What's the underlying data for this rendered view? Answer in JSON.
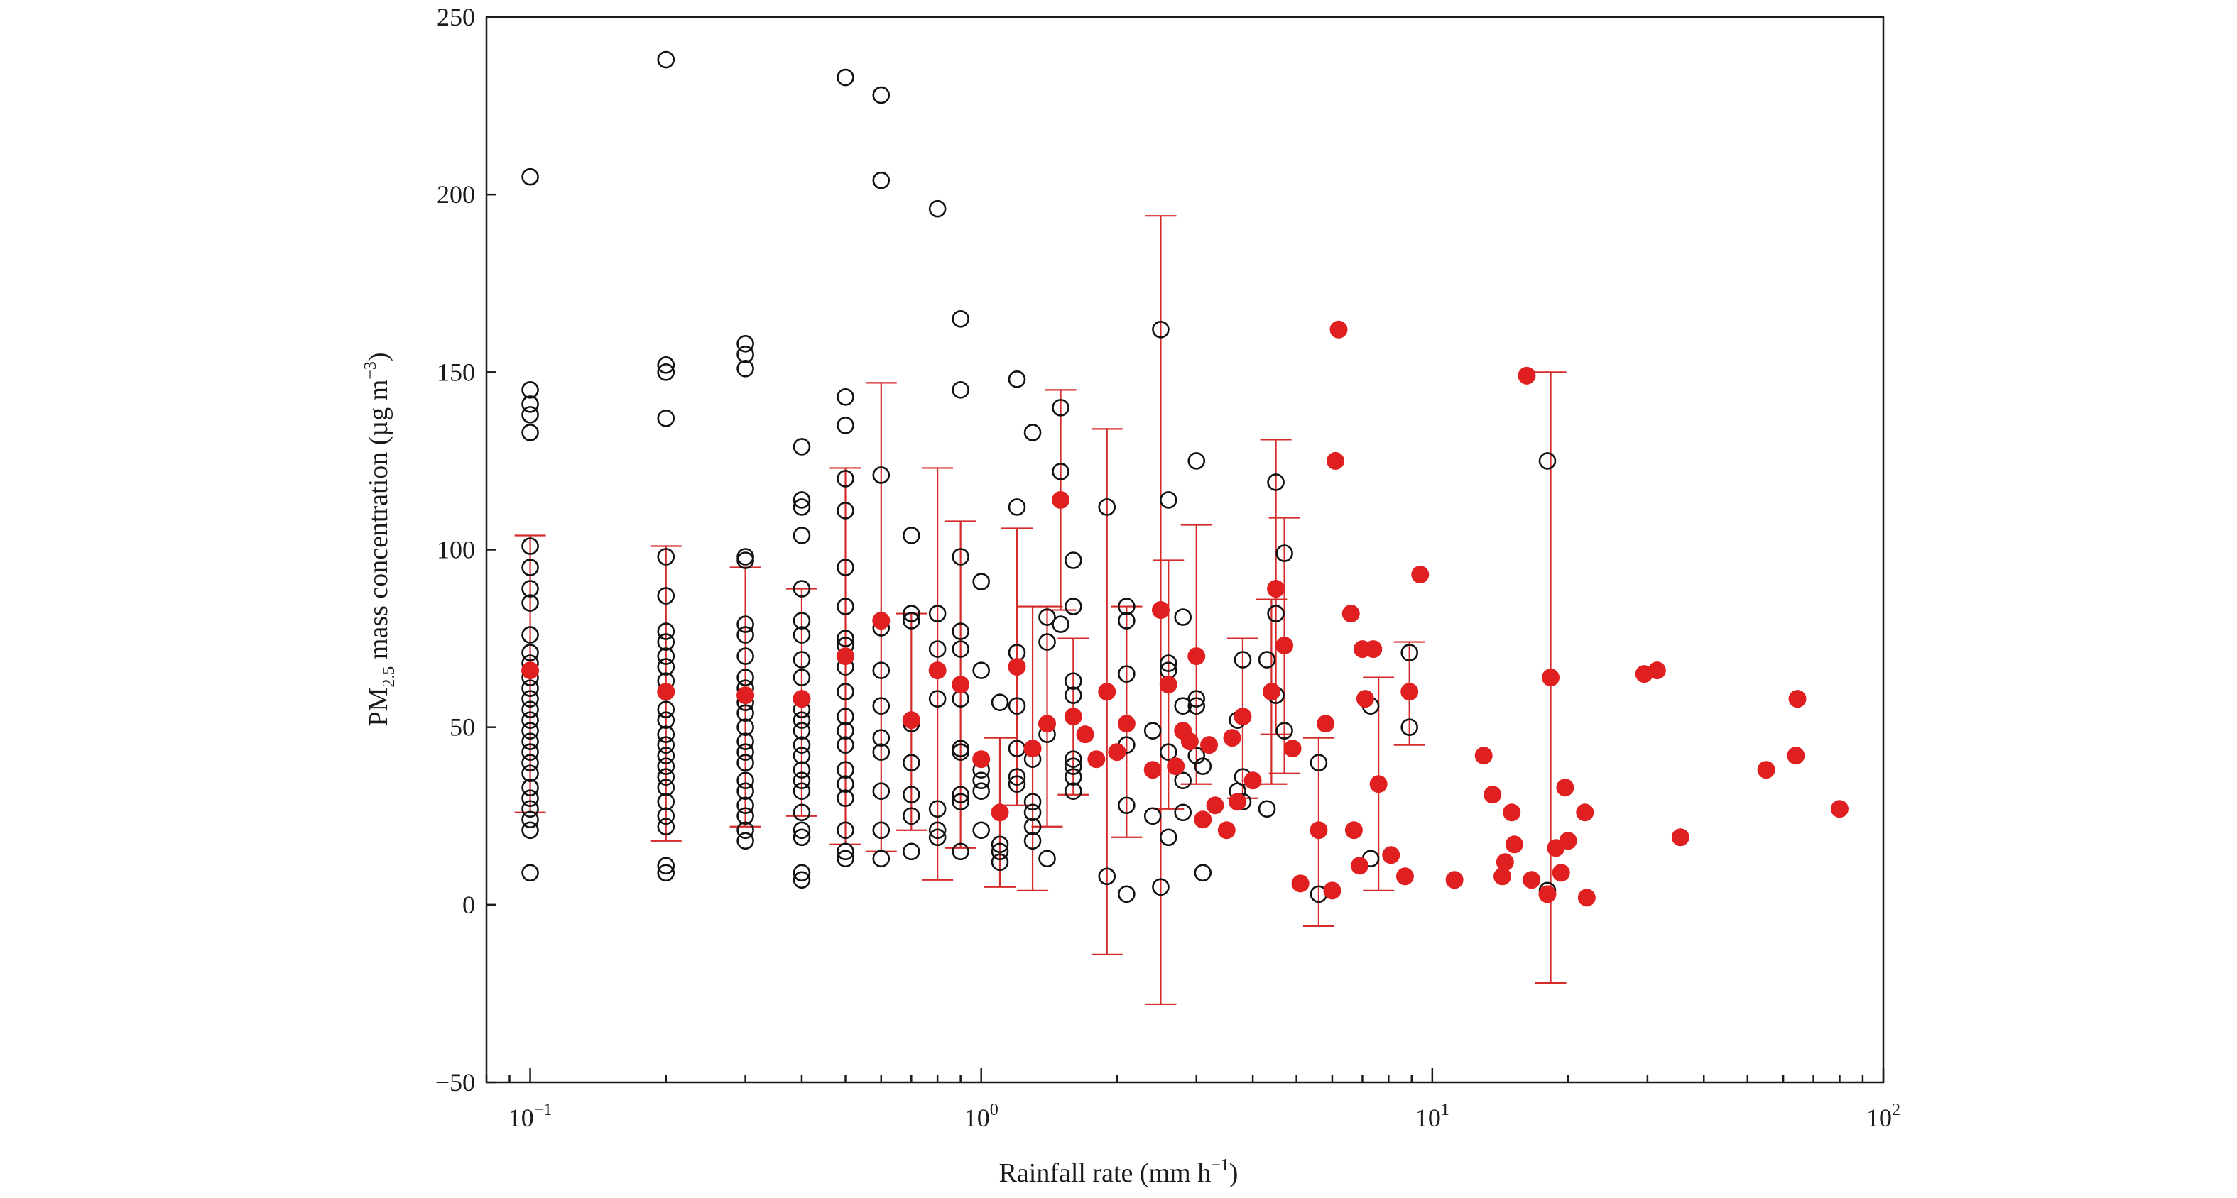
{
  "chart_data": {
    "type": "scatter",
    "title": "",
    "xlabel": {
      "main": "Rainfall rate (mm h",
      "sup": "−1",
      "close": ")"
    },
    "ylabel": {
      "pre": "PM",
      "sub": "2.5",
      "mid": " mass concentration (µg m",
      "sup": "−3",
      "close": ")"
    },
    "x_scale": "log",
    "xlim": [
      0.08,
      100
    ],
    "ylim": [
      -50,
      250
    ],
    "y_ticks": [
      -50,
      0,
      50,
      100,
      150,
      200,
      250
    ],
    "x_ticks": [
      {
        "value": 0.1,
        "base": "10",
        "exp": "−1"
      },
      {
        "value": 1,
        "base": "10",
        "exp": "0"
      },
      {
        "value": 10,
        "base": "10",
        "exp": "1"
      },
      {
        "value": 100,
        "base": "10",
        "exp": "2"
      }
    ],
    "grid": false,
    "colors": {
      "observations": "#111111",
      "means": "#e02020",
      "errorbars": "#d42a2a"
    },
    "observations": [
      [
        0.1,
        205
      ],
      [
        0.1,
        145
      ],
      [
        0.1,
        141
      ],
      [
        0.1,
        138
      ],
      [
        0.1,
        133
      ],
      [
        0.1,
        101
      ],
      [
        0.1,
        95
      ],
      [
        0.1,
        89
      ],
      [
        0.1,
        85
      ],
      [
        0.1,
        76
      ],
      [
        0.1,
        71
      ],
      [
        0.1,
        68
      ],
      [
        0.1,
        64
      ],
      [
        0.1,
        61
      ],
      [
        0.1,
        58
      ],
      [
        0.1,
        55
      ],
      [
        0.1,
        52
      ],
      [
        0.1,
        49
      ],
      [
        0.1,
        46
      ],
      [
        0.1,
        43
      ],
      [
        0.1,
        40
      ],
      [
        0.1,
        37
      ],
      [
        0.1,
        33
      ],
      [
        0.1,
        30
      ],
      [
        0.1,
        27
      ],
      [
        0.1,
        24
      ],
      [
        0.1,
        21
      ],
      [
        0.1,
        9
      ],
      [
        0.2,
        238
      ],
      [
        0.2,
        152
      ],
      [
        0.2,
        150
      ],
      [
        0.2,
        137
      ],
      [
        0.2,
        98
      ],
      [
        0.2,
        87
      ],
      [
        0.2,
        77
      ],
      [
        0.2,
        74
      ],
      [
        0.2,
        70
      ],
      [
        0.2,
        67
      ],
      [
        0.2,
        63
      ],
      [
        0.2,
        60
      ],
      [
        0.2,
        55
      ],
      [
        0.2,
        52
      ],
      [
        0.2,
        48
      ],
      [
        0.2,
        45
      ],
      [
        0.2,
        42
      ],
      [
        0.2,
        39
      ],
      [
        0.2,
        36
      ],
      [
        0.2,
        33
      ],
      [
        0.2,
        29
      ],
      [
        0.2,
        25
      ],
      [
        0.2,
        22
      ],
      [
        0.2,
        11
      ],
      [
        0.2,
        9
      ],
      [
        0.3,
        158
      ],
      [
        0.3,
        155
      ],
      [
        0.3,
        151
      ],
      [
        0.3,
        98
      ],
      [
        0.3,
        97
      ],
      [
        0.3,
        79
      ],
      [
        0.3,
        76
      ],
      [
        0.3,
        70
      ],
      [
        0.3,
        64
      ],
      [
        0.3,
        61
      ],
      [
        0.3,
        57
      ],
      [
        0.3,
        54
      ],
      [
        0.3,
        50
      ],
      [
        0.3,
        46
      ],
      [
        0.3,
        43
      ],
      [
        0.3,
        40
      ],
      [
        0.3,
        35
      ],
      [
        0.3,
        32
      ],
      [
        0.3,
        28
      ],
      [
        0.3,
        25
      ],
      [
        0.3,
        21
      ],
      [
        0.3,
        18
      ],
      [
        0.4,
        129
      ],
      [
        0.4,
        114
      ],
      [
        0.4,
        112
      ],
      [
        0.4,
        104
      ],
      [
        0.4,
        89
      ],
      [
        0.4,
        80
      ],
      [
        0.4,
        76
      ],
      [
        0.4,
        69
      ],
      [
        0.4,
        64
      ],
      [
        0.4,
        58
      ],
      [
        0.4,
        55
      ],
      [
        0.4,
        52
      ],
      [
        0.4,
        49
      ],
      [
        0.4,
        45
      ],
      [
        0.4,
        42
      ],
      [
        0.4,
        38
      ],
      [
        0.4,
        35
      ],
      [
        0.4,
        32
      ],
      [
        0.4,
        26
      ],
      [
        0.4,
        21
      ],
      [
        0.4,
        19
      ],
      [
        0.4,
        9
      ],
      [
        0.4,
        7
      ],
      [
        0.5,
        233
      ],
      [
        0.5,
        143
      ],
      [
        0.5,
        135
      ],
      [
        0.5,
        120
      ],
      [
        0.5,
        111
      ],
      [
        0.5,
        95
      ],
      [
        0.5,
        84
      ],
      [
        0.5,
        75
      ],
      [
        0.5,
        73
      ],
      [
        0.5,
        67
      ],
      [
        0.5,
        60
      ],
      [
        0.5,
        53
      ],
      [
        0.5,
        49
      ],
      [
        0.5,
        45
      ],
      [
        0.5,
        38
      ],
      [
        0.5,
        34
      ],
      [
        0.5,
        30
      ],
      [
        0.5,
        21
      ],
      [
        0.5,
        15
      ],
      [
        0.5,
        13
      ],
      [
        0.6,
        228
      ],
      [
        0.6,
        204
      ],
      [
        0.6,
        121
      ],
      [
        0.6,
        80
      ],
      [
        0.6,
        78
      ],
      [
        0.6,
        66
      ],
      [
        0.6,
        56
      ],
      [
        0.6,
        47
      ],
      [
        0.6,
        43
      ],
      [
        0.6,
        32
      ],
      [
        0.6,
        21
      ],
      [
        0.6,
        13
      ],
      [
        0.7,
        104
      ],
      [
        0.7,
        82
      ],
      [
        0.7,
        80
      ],
      [
        0.7,
        51
      ],
      [
        0.7,
        40
      ],
      [
        0.7,
        31
      ],
      [
        0.7,
        25
      ],
      [
        0.7,
        15
      ],
      [
        0.8,
        196
      ],
      [
        0.8,
        82
      ],
      [
        0.8,
        72
      ],
      [
        0.8,
        58
      ],
      [
        0.8,
        27
      ],
      [
        0.8,
        21
      ],
      [
        0.8,
        19
      ],
      [
        0.9,
        165
      ],
      [
        0.9,
        145
      ],
      [
        0.9,
        98
      ],
      [
        0.9,
        77
      ],
      [
        0.9,
        72
      ],
      [
        0.9,
        58
      ],
      [
        0.9,
        44
      ],
      [
        0.9,
        43
      ],
      [
        0.9,
        31
      ],
      [
        0.9,
        29
      ],
      [
        0.9,
        15
      ],
      [
        1.0,
        91
      ],
      [
        1.0,
        66
      ],
      [
        1.0,
        38
      ],
      [
        1.0,
        35
      ],
      [
        1.0,
        32
      ],
      [
        1.0,
        21
      ],
      [
        1.1,
        57
      ],
      [
        1.1,
        17
      ],
      [
        1.1,
        15
      ],
      [
        1.1,
        12
      ],
      [
        1.2,
        148
      ],
      [
        1.2,
        112
      ],
      [
        1.2,
        71
      ],
      [
        1.2,
        56
      ],
      [
        1.2,
        44
      ],
      [
        1.2,
        36
      ],
      [
        1.2,
        34
      ],
      [
        1.3,
        133
      ],
      [
        1.3,
        41
      ],
      [
        1.3,
        29
      ],
      [
        1.3,
        26
      ],
      [
        1.3,
        22
      ],
      [
        1.3,
        18
      ],
      [
        1.4,
        81
      ],
      [
        1.4,
        74
      ],
      [
        1.4,
        48
      ],
      [
        1.4,
        13
      ],
      [
        1.5,
        140
      ],
      [
        1.5,
        122
      ],
      [
        1.5,
        79
      ],
      [
        1.6,
        97
      ],
      [
        1.6,
        84
      ],
      [
        1.6,
        63
      ],
      [
        1.6,
        59
      ],
      [
        1.6,
        41
      ],
      [
        1.6,
        39
      ],
      [
        1.6,
        36
      ],
      [
        1.6,
        32
      ],
      [
        1.9,
        112
      ],
      [
        1.9,
        8
      ],
      [
        2.1,
        84
      ],
      [
        2.1,
        80
      ],
      [
        2.1,
        65
      ],
      [
        2.1,
        45
      ],
      [
        2.1,
        28
      ],
      [
        2.1,
        3
      ],
      [
        2.4,
        49
      ],
      [
        2.4,
        25
      ],
      [
        2.5,
        162
      ],
      [
        2.5,
        5
      ],
      [
        2.6,
        114
      ],
      [
        2.6,
        68
      ],
      [
        2.6,
        66
      ],
      [
        2.6,
        43
      ],
      [
        2.6,
        19
      ],
      [
        2.8,
        81
      ],
      [
        2.8,
        56
      ],
      [
        2.8,
        35
      ],
      [
        2.8,
        26
      ],
      [
        3.0,
        125
      ],
      [
        3.0,
        58
      ],
      [
        3.0,
        56
      ],
      [
        3.0,
        42
      ],
      [
        3.1,
        39
      ],
      [
        3.1,
        9
      ],
      [
        3.7,
        52
      ],
      [
        3.7,
        32
      ],
      [
        3.8,
        69
      ],
      [
        3.8,
        36
      ],
      [
        3.8,
        29
      ],
      [
        4.3,
        69
      ],
      [
        4.3,
        27
      ],
      [
        4.5,
        119
      ],
      [
        4.5,
        82
      ],
      [
        4.5,
        59
      ],
      [
        4.7,
        99
      ],
      [
        4.7,
        49
      ],
      [
        5.6,
        40
      ],
      [
        5.6,
        3
      ],
      [
        7.3,
        56
      ],
      [
        7.3,
        13
      ],
      [
        8.9,
        71
      ],
      [
        8.9,
        50
      ],
      [
        18.0,
        125
      ],
      [
        18.0,
        4
      ]
    ],
    "means": [
      {
        "x": 0.1,
        "y": 66,
        "lo": 26,
        "hi": 104
      },
      {
        "x": 0.2,
        "y": 60,
        "lo": 18,
        "hi": 101
      },
      {
        "x": 0.3,
        "y": 59,
        "lo": 22,
        "hi": 95
      },
      {
        "x": 0.4,
        "y": 58,
        "lo": 25,
        "hi": 89
      },
      {
        "x": 0.5,
        "y": 70,
        "lo": 17,
        "hi": 123
      },
      {
        "x": 0.6,
        "y": 80,
        "lo": 15,
        "hi": 147
      },
      {
        "x": 0.7,
        "y": 52,
        "lo": 21,
        "hi": 82
      },
      {
        "x": 0.8,
        "y": 66,
        "lo": 7,
        "hi": 123
      },
      {
        "x": 0.9,
        "y": 62,
        "lo": 16,
        "hi": 108
      },
      {
        "x": 1.0,
        "y": 41
      },
      {
        "x": 1.1,
        "y": 26,
        "lo": 5,
        "hi": 47
      },
      {
        "x": 1.2,
        "y": 67,
        "lo": 28,
        "hi": 106
      },
      {
        "x": 1.3,
        "y": 44,
        "lo": 4,
        "hi": 84
      },
      {
        "x": 1.4,
        "y": 51,
        "lo": 22,
        "hi": 84
      },
      {
        "x": 1.5,
        "y": 114,
        "lo": 83,
        "hi": 145
      },
      {
        "x": 1.6,
        "y": 53,
        "lo": 31,
        "hi": 75
      },
      {
        "x": 1.7,
        "y": 48
      },
      {
        "x": 1.8,
        "y": 41
      },
      {
        "x": 1.9,
        "y": 60,
        "lo": -14,
        "hi": 134
      },
      {
        "x": 2.0,
        "y": 43
      },
      {
        "x": 2.1,
        "y": 51,
        "lo": 19,
        "hi": 84
      },
      {
        "x": 2.4,
        "y": 38
      },
      {
        "x": 2.5,
        "y": 83,
        "lo": -28,
        "hi": 194
      },
      {
        "x": 2.6,
        "y": 62,
        "lo": 27,
        "hi": 97
      },
      {
        "x": 2.7,
        "y": 39
      },
      {
        "x": 2.8,
        "y": 49
      },
      {
        "x": 2.9,
        "y": 46
      },
      {
        "x": 3.0,
        "y": 70,
        "lo": 34,
        "hi": 107
      },
      {
        "x": 3.1,
        "y": 24
      },
      {
        "x": 3.2,
        "y": 45
      },
      {
        "x": 3.3,
        "y": 28
      },
      {
        "x": 3.5,
        "y": 21
      },
      {
        "x": 3.6,
        "y": 47
      },
      {
        "x": 3.7,
        "y": 29
      },
      {
        "x": 3.8,
        "y": 53,
        "lo": 30,
        "hi": 75
      },
      {
        "x": 4.0,
        "y": 35
      },
      {
        "x": 4.4,
        "y": 60,
        "lo": 34,
        "hi": 86
      },
      {
        "x": 4.5,
        "y": 89,
        "lo": 48,
        "hi": 131
      },
      {
        "x": 4.7,
        "y": 73,
        "lo": 37,
        "hi": 109
      },
      {
        "x": 4.9,
        "y": 44
      },
      {
        "x": 5.1,
        "y": 6
      },
      {
        "x": 5.6,
        "y": 21,
        "lo": -6,
        "hi": 47
      },
      {
        "x": 5.8,
        "y": 51
      },
      {
        "x": 6.0,
        "y": 4
      },
      {
        "x": 6.1,
        "y": 125
      },
      {
        "x": 6.2,
        "y": 162
      },
      {
        "x": 6.6,
        "y": 82
      },
      {
        "x": 6.7,
        "y": 21
      },
      {
        "x": 6.9,
        "y": 11
      },
      {
        "x": 7.0,
        "y": 72
      },
      {
        "x": 7.1,
        "y": 58
      },
      {
        "x": 7.4,
        "y": 72
      },
      {
        "x": 7.6,
        "y": 34,
        "lo": 4,
        "hi": 64
      },
      {
        "x": 8.1,
        "y": 14
      },
      {
        "x": 8.7,
        "y": 8
      },
      {
        "x": 8.9,
        "y": 60,
        "lo": 45,
        "hi": 74
      },
      {
        "x": 9.4,
        "y": 93
      },
      {
        "x": 11.2,
        "y": 7
      },
      {
        "x": 13.0,
        "y": 42
      },
      {
        "x": 13.6,
        "y": 31
      },
      {
        "x": 14.3,
        "y": 8
      },
      {
        "x": 14.5,
        "y": 12
      },
      {
        "x": 15.0,
        "y": 26
      },
      {
        "x": 15.2,
        "y": 17
      },
      {
        "x": 16.2,
        "y": 149
      },
      {
        "x": 16.6,
        "y": 7
      },
      {
        "x": 18.0,
        "y": 3
      },
      {
        "x": 18.3,
        "y": 64,
        "lo": -22,
        "hi": 150
      },
      {
        "x": 18.8,
        "y": 16
      },
      {
        "x": 19.3,
        "y": 9
      },
      {
        "x": 19.7,
        "y": 33
      },
      {
        "x": 20.0,
        "y": 18
      },
      {
        "x": 21.8,
        "y": 26
      },
      {
        "x": 22.0,
        "y": 2
      },
      {
        "x": 29.5,
        "y": 65
      },
      {
        "x": 31.5,
        "y": 66
      },
      {
        "x": 35.5,
        "y": 19
      },
      {
        "x": 55.0,
        "y": 38
      },
      {
        "x": 64.0,
        "y": 42
      },
      {
        "x": 64.5,
        "y": 58
      },
      {
        "x": 80.0,
        "y": 27
      }
    ]
  }
}
